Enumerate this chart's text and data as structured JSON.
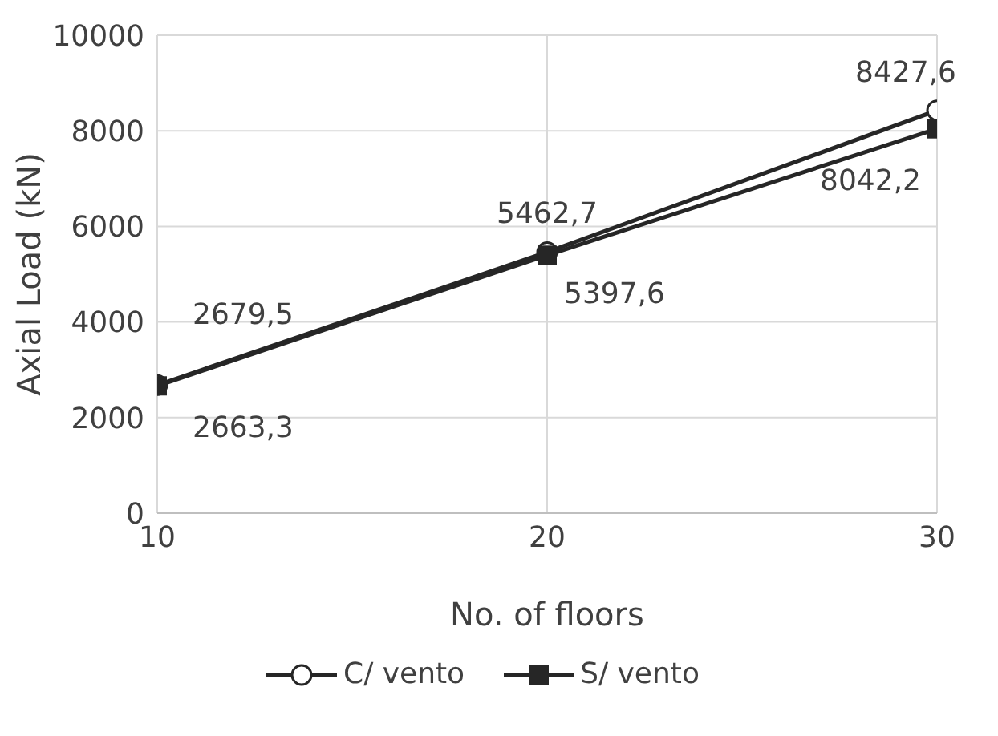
{
  "chart_data": {
    "type": "line",
    "xlabel": "No. of floors",
    "ylabel": "Axial Load (kN)",
    "x": [
      10,
      20,
      30
    ],
    "xlim": [
      10,
      30
    ],
    "xticks": [
      10,
      20,
      30
    ],
    "ylim": [
      0,
      10000
    ],
    "yticks": [
      0,
      2000,
      4000,
      6000,
      8000,
      10000
    ],
    "grid": true,
    "legend": "bottom",
    "series": [
      {
        "name": "C/ vento",
        "color": "#262626",
        "marker": "circle",
        "values": [
          2679.5,
          5462.7,
          8427.6
        ],
        "value_labels": [
          "2679,5",
          "5462,7",
          "8427,6"
        ]
      },
      {
        "name": "S/ vento",
        "color": "#262626",
        "marker": "square",
        "values": [
          2663.3,
          5397.6,
          8042.2
        ],
        "value_labels": [
          "2663,3",
          "5397,6",
          "8042,2"
        ]
      }
    ]
  }
}
